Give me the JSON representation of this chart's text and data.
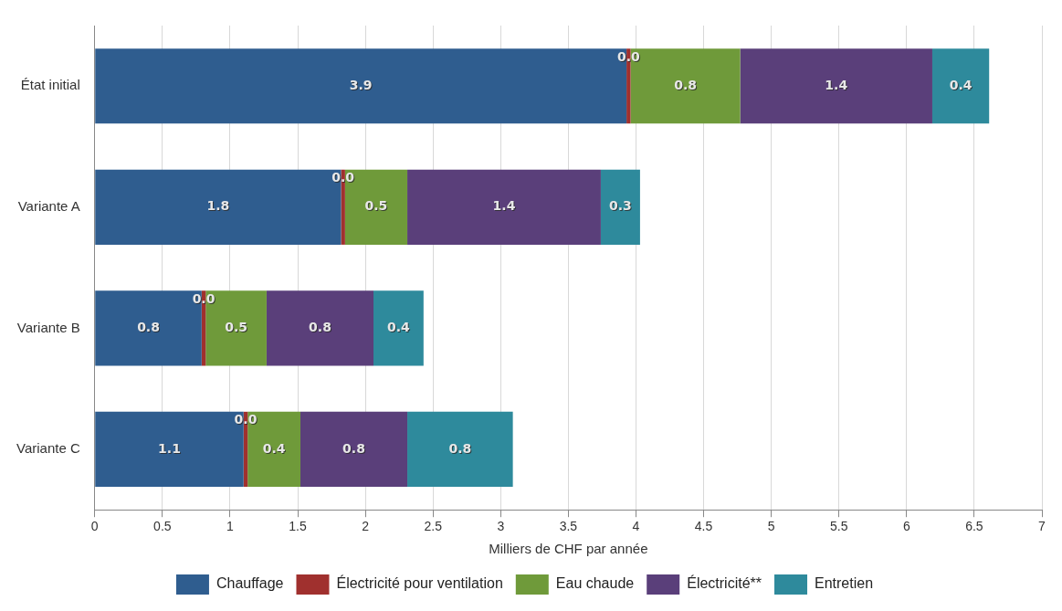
{
  "chart_data": {
    "type": "bar",
    "orientation": "horizontal",
    "stacked": true,
    "xlabel": "Milliers de CHF par année",
    "categories": [
      "État initial",
      "Variante A",
      "Variante B",
      "Variante C"
    ],
    "series": [
      {
        "name": "Chauffage",
        "color": "#2f5d8f",
        "values": [
          3.93,
          1.82,
          0.79,
          1.1
        ],
        "value_labels": [
          "3.9",
          "1.8",
          "0.8",
          "1.1"
        ]
      },
      {
        "name": "Électricité pour ventilation",
        "color": "#a0302e",
        "values": [
          0.03,
          0.03,
          0.03,
          0.03
        ],
        "value_labels": [
          "0.0",
          "0.0",
          "0.0",
          "0.0"
        ]
      },
      {
        "name": "Eau chaude",
        "color": "#6f9a3a",
        "values": [
          0.81,
          0.46,
          0.45,
          0.39
        ],
        "value_labels": [
          "0.8",
          "0.5",
          "0.5",
          "0.4"
        ]
      },
      {
        "name": "Électricité**",
        "color": "#5a3f7a",
        "values": [
          1.42,
          1.43,
          0.79,
          0.79
        ],
        "value_labels": [
          "1.4",
          "1.4",
          "0.8",
          "0.8"
        ]
      },
      {
        "name": "Entretien",
        "color": "#2e8a9c",
        "values": [
          0.42,
          0.29,
          0.37,
          0.78
        ],
        "value_labels": [
          "0.4",
          "0.3",
          "0.4",
          "0.8"
        ]
      }
    ],
    "xlim": [
      0,
      7
    ],
    "xticks": [
      0,
      0.5,
      1,
      1.5,
      2,
      2.5,
      3,
      3.5,
      4,
      4.5,
      5,
      5.5,
      6,
      6.5,
      7
    ],
    "grid": "x",
    "legend": "bottom"
  }
}
